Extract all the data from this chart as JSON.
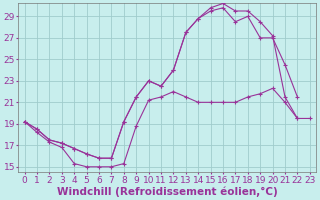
{
  "background_color": "#c8eeed",
  "grid_color": "#a0cccc",
  "line_color": "#993399",
  "xlabel": "Windchill (Refroidissement éolien,°C)",
  "xlabel_fontsize": 7.5,
  "tick_fontsize": 6.5,
  "ylim": [
    14.5,
    30.2
  ],
  "xlim": [
    -0.5,
    23.5
  ],
  "yticks": [
    15,
    17,
    19,
    21,
    23,
    25,
    27,
    29
  ],
  "xticks": [
    0,
    1,
    2,
    3,
    4,
    5,
    6,
    7,
    8,
    9,
    10,
    11,
    12,
    13,
    14,
    15,
    16,
    17,
    18,
    19,
    20,
    21,
    22,
    23
  ],
  "series": [
    {
      "x": [
        0,
        1,
        2,
        3,
        4,
        5,
        6,
        7,
        8,
        9,
        10,
        11,
        12,
        13,
        14,
        15,
        16,
        17,
        18,
        19,
        20,
        21,
        22,
        23
      ],
      "y": [
        19.2,
        18.2,
        17.3,
        16.8,
        15.3,
        15.0,
        15.0,
        15.0,
        15.3,
        18.8,
        21.2,
        21.5,
        22.0,
        21.5,
        21.0,
        21.0,
        21.0,
        21.0,
        21.5,
        21.8,
        22.3,
        21.0,
        19.5,
        19.5
      ]
    },
    {
      "x": [
        0,
        1,
        2,
        3,
        4,
        5,
        6,
        7,
        8,
        9,
        10,
        11,
        12,
        13,
        14,
        15,
        16,
        17,
        18,
        19,
        20,
        21,
        22
      ],
      "y": [
        19.2,
        18.5,
        17.5,
        17.2,
        16.7,
        16.2,
        15.8,
        15.8,
        19.2,
        21.5,
        23.0,
        22.5,
        24.0,
        27.5,
        28.8,
        29.8,
        30.2,
        29.5,
        29.5,
        28.5,
        27.2,
        21.5,
        19.5
      ]
    },
    {
      "x": [
        0,
        1,
        2,
        3,
        4,
        5,
        6,
        7,
        8,
        9,
        10,
        11,
        12,
        13,
        14,
        15,
        16,
        17,
        18,
        19,
        20,
        21,
        22
      ],
      "y": [
        19.2,
        18.5,
        17.5,
        17.2,
        16.7,
        16.2,
        15.8,
        15.8,
        19.2,
        21.5,
        23.0,
        22.5,
        24.0,
        27.5,
        28.8,
        29.5,
        29.8,
        28.5,
        29.0,
        27.0,
        27.0,
        24.5,
        21.5
      ]
    }
  ]
}
